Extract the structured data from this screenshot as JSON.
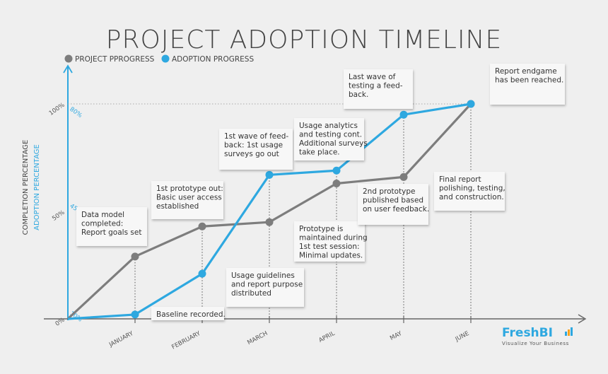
{
  "chart_data": {
    "type": "line",
    "title": "PROJECT ADOPTION TIMELINE",
    "categories": [
      "",
      "JANUARY",
      "FEBRUARY",
      "MARCH",
      "APRIL",
      "MAY",
      "JUNE"
    ],
    "series": [
      {
        "name": "PROJECT PPROGRESS",
        "color": "#7d7d7d",
        "values": [
          0,
          29,
          43,
          45,
          63,
          66,
          100
        ]
      },
      {
        "name": "ADOPTION PROGRESS",
        "color": "#2ea8e0",
        "values": [
          0,
          2,
          21,
          67,
          69,
          95,
          100
        ]
      }
    ],
    "y_ticks": [
      {
        "value": 0,
        "label": "0%"
      },
      {
        "value": 50,
        "label": "50%"
      },
      {
        "value": 100,
        "label": "100%"
      }
    ],
    "adoption_ticks": [
      {
        "value": 3,
        "label": "10%"
      },
      {
        "value": 53,
        "label": "45%"
      },
      {
        "value": 98,
        "label": "80%"
      }
    ],
    "ylabel": "COMPLETION PERCENTAGE",
    "ylabel2": "ADOPTION PERCENTAGE",
    "ylim": [
      0,
      100
    ],
    "legend_position": "top-left",
    "annotations": [
      [
        "Data model",
        "completed:",
        "Report goals set"
      ],
      [
        "Baseline recorded."
      ],
      [
        "1st prototype out:",
        "Basic user access",
        "established"
      ],
      [
        "Usage guidelines",
        "and report purpose",
        "distributed"
      ],
      [
        "1st wave of feed-",
        "back: 1st usage",
        "surveys go out"
      ],
      [
        "Prototype is",
        "maintained during",
        "1st test session:",
        "Minimal updates."
      ],
      [
        "Usage analytics",
        "and testing cont.",
        "Additional surveys",
        "take place."
      ],
      [
        "2nd prototype",
        "published based",
        "on user feedback."
      ],
      [
        "Last wave of",
        "testing a feed-",
        "back."
      ],
      [
        "Final report",
        "polishing, testing,",
        "and construction."
      ],
      [
        "Report endgame",
        "has been reached."
      ]
    ]
  },
  "logo": {
    "text": "FreshBI",
    "tagline": "Visualize Your Business",
    "color": "#2ea8e0"
  }
}
